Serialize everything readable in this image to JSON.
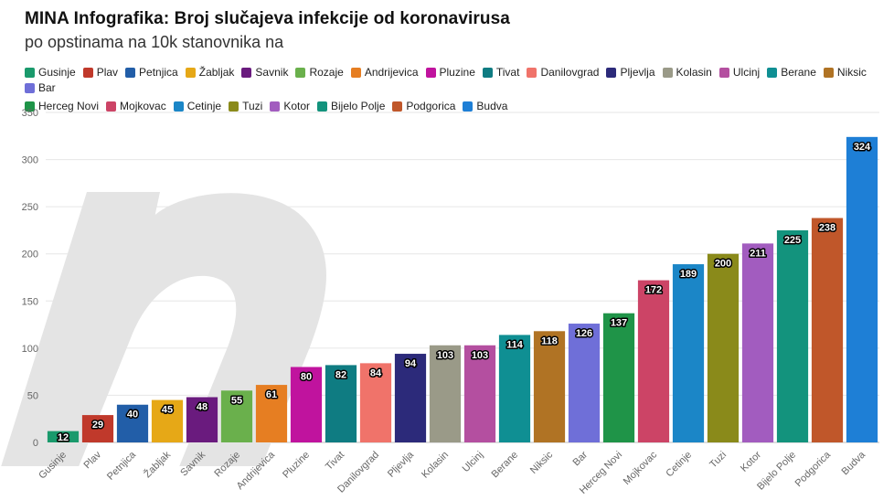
{
  "header": {
    "title": "MINA Infografika: Broj slučajeva infekcije od koronavirusa",
    "subtitle": "po opstinama na 10k stanovnika na"
  },
  "chart_data": {
    "type": "bar",
    "categories": [
      "Gusinje",
      "Plav",
      "Petnjica",
      "Žabljak",
      "Savnik",
      "Rozaje",
      "Andrijevica",
      "Pluzine",
      "Tivat",
      "Danilovgrad",
      "Pljevlja",
      "Kolasin",
      "Ulcinj",
      "Berane",
      "Niksic",
      "Bar",
      "Herceg Novi",
      "Mojkovac",
      "Cetinje",
      "Tuzi",
      "Kotor",
      "Bijelo Polje",
      "Podgorica",
      "Budva"
    ],
    "values": [
      12,
      29,
      40,
      45,
      48,
      55,
      61,
      80,
      82,
      84,
      94,
      103,
      103,
      114,
      118,
      126,
      137,
      172,
      189,
      200,
      211,
      225,
      238,
      324
    ],
    "colors": [
      "#1a9a6c",
      "#c0392b",
      "#225ea8",
      "#e6a817",
      "#6a1b7e",
      "#6ab04c",
      "#e67e22",
      "#c0139e",
      "#0f7c82",
      "#f0736a",
      "#2c2a7a",
      "#9a9a88",
      "#b44fa0",
      "#0f8f93",
      "#b07324",
      "#6f6fd8",
      "#1f9448",
      "#cc4466",
      "#1b86c7",
      "#8a8a1a",
      "#a25cbf",
      "#13937d",
      "#c0572a",
      "#1e7fd6"
    ],
    "legend_order": [
      [
        "Gusinje",
        "Plav",
        "Petnjica",
        "Žabljak",
        "Savnik",
        "Rozaje",
        "Andrijevica",
        "Pluzine",
        "Tivat",
        "Danilovgrad",
        "Pljevlja",
        "Kolasin",
        "Ulcinj",
        "Berane",
        "Niksic",
        "Bar"
      ],
      [
        "Herceg Novi",
        "Mojkovac",
        "Cetinje",
        "Tuzi",
        "Kotor",
        "Bijelo Polje",
        "Podgorica",
        "Budva"
      ]
    ],
    "ylim": [
      0,
      350
    ],
    "yticks": [
      0,
      50,
      100,
      150,
      200,
      250,
      300,
      350
    ],
    "xlabel": "",
    "ylabel": "",
    "grid": true,
    "legend_position": "top-left",
    "data_labels": true
  }
}
